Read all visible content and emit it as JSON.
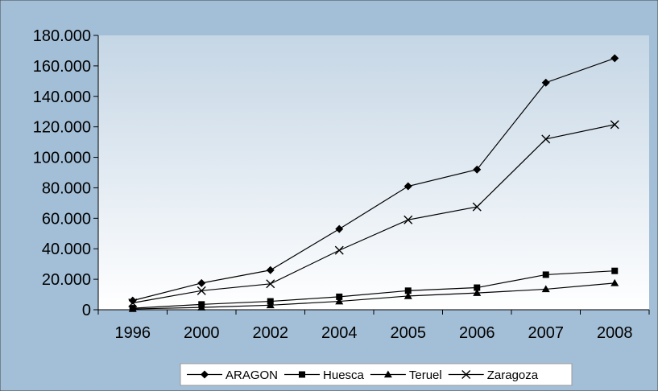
{
  "chart_data": {
    "type": "line",
    "categories": [
      "1996",
      "2000",
      "2002",
      "2004",
      "2005",
      "2006",
      "2007",
      "2008"
    ],
    "ylim": [
      0,
      180000
    ],
    "yticks": [
      0,
      20000,
      40000,
      60000,
      80000,
      100000,
      120000,
      140000,
      160000,
      180000
    ],
    "ytick_labels": [
      "0",
      "20.000",
      "40.000",
      "60.000",
      "80.000",
      "100.000",
      "120.000",
      "140.000",
      "160.000",
      "180.000"
    ],
    "grid": false,
    "legend_position": "bottom",
    "series": [
      {
        "name": "ARAGON",
        "marker": "diamond",
        "values": [
          6000,
          17500,
          26000,
          53000,
          81000,
          92000,
          149000,
          165000
        ]
      },
      {
        "name": "Huesca",
        "marker": "square",
        "values": [
          1000,
          3500,
          5500,
          8500,
          12500,
          14500,
          23000,
          25500
        ]
      },
      {
        "name": "Teruel",
        "marker": "triangle",
        "values": [
          500,
          1500,
          3000,
          5500,
          9000,
          11000,
          13500,
          17500
        ]
      },
      {
        "name": "Zaragoza",
        "marker": "x",
        "values": [
          4500,
          12500,
          17000,
          39000,
          59000,
          67500,
          112000,
          121500
        ]
      }
    ],
    "colors": {
      "outer_background": "#a3bfd7",
      "plot_gradient_top": "#c5d6e5",
      "plot_gradient_bottom": "#ffffff",
      "line": "#000000"
    }
  }
}
